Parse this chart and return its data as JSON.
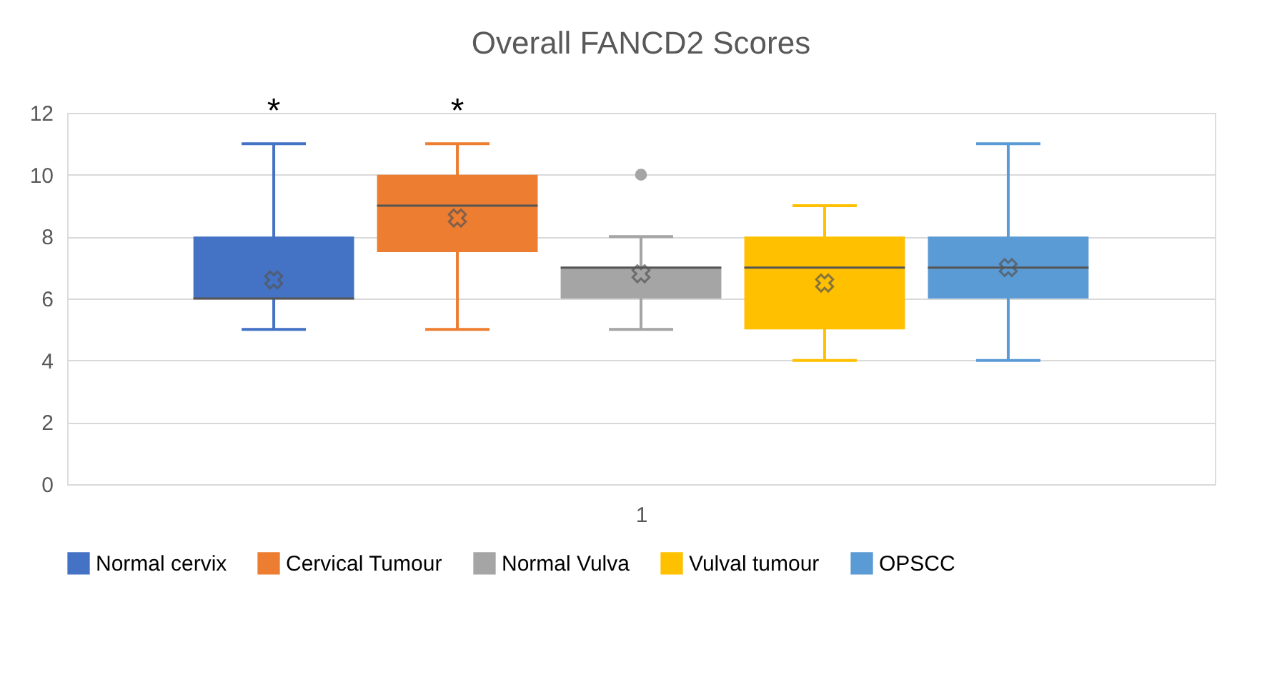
{
  "chart_data": {
    "type": "box",
    "title": "Overall FANCD2 Scores",
    "categories": [
      "1"
    ],
    "series": [
      {
        "name": "Normal cervix",
        "color": "#4472c4",
        "boxes": [
          {
            "low": 5,
            "q1": 6,
            "median": 6,
            "q3": 8,
            "high": 11,
            "mean": 6.6
          }
        ]
      },
      {
        "name": "Cervical Tumour",
        "color": "#ed7d31",
        "boxes": [
          {
            "low": 5,
            "q1": 7.5,
            "median": 9,
            "q3": 10,
            "high": 11,
            "mean": 8.6
          }
        ]
      },
      {
        "name": "Normal Vulva",
        "color": "#a5a5a5",
        "boxes": [
          {
            "low": 5,
            "q1": 6,
            "median": 7,
            "q3": 7,
            "high": 8,
            "mean": 6.8,
            "outliers": [
              10
            ]
          }
        ]
      },
      {
        "name": "Vulval tumour",
        "color": "#ffc000",
        "boxes": [
          {
            "low": 4,
            "q1": 5,
            "median": 7,
            "q3": 8,
            "high": 9,
            "mean": 6.5
          }
        ]
      },
      {
        "name": "OPSCC",
        "color": "#5b9bd5",
        "boxes": [
          {
            "low": 4,
            "q1": 6,
            "median": 7,
            "q3": 8,
            "high": 11,
            "mean": 7
          }
        ]
      }
    ],
    "annotations": [
      "*",
      "*"
    ],
    "ylim": [
      0,
      12
    ],
    "yticks": [
      0,
      2,
      4,
      6,
      8,
      10,
      12
    ],
    "grid": "y",
    "legend": "bottom"
  }
}
